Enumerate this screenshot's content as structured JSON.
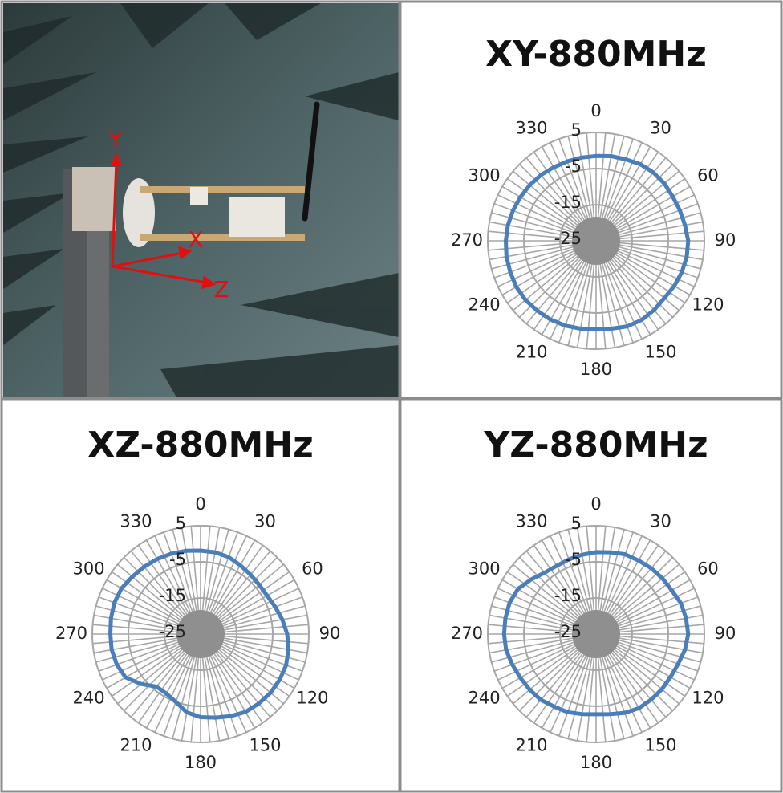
{
  "photo": {
    "axis_labels": [
      "Y",
      "X",
      "Z"
    ]
  },
  "chart_data": [
    {
      "type": "radar",
      "title": "XY-880MHz",
      "categories": [
        0,
        null,
        null,
        30,
        null,
        null,
        60,
        null,
        null,
        90,
        null,
        null,
        120,
        null,
        null,
        150,
        null,
        null,
        180,
        null,
        null,
        210,
        null,
        null,
        240,
        null,
        null,
        270,
        null,
        null,
        300,
        null,
        null,
        330,
        null,
        null
      ],
      "series": [
        {
          "color": "#4a7ebb",
          "values": [
            -1.5,
            -1.2,
            -1,
            -0.5,
            -0.3,
            -0.3,
            -0.5,
            -0.3,
            0,
            0.5,
            0.5,
            0.3,
            0,
            -0.3,
            0,
            0.3,
            0.2,
            -0.3,
            -0.5,
            -0.3,
            0,
            0.2,
            0.3,
            0.5,
            0.5,
            0.3,
            0.2,
            0,
            -0.2,
            -0.5,
            -0.8,
            -1,
            -1.2,
            -1.5,
            -1.6,
            -1.6
          ]
        }
      ],
      "ylim": [
        -25,
        5
      ],
      "yticks": [
        -25,
        -15,
        -5,
        5
      ],
      "grid": true
    },
    {
      "type": "radar",
      "title": "XZ-880MHz",
      "categories": [
        0,
        null,
        null,
        30,
        null,
        null,
        60,
        null,
        null,
        90,
        null,
        null,
        120,
        null,
        null,
        150,
        null,
        null,
        180,
        null,
        null,
        210,
        null,
        null,
        240,
        null,
        null,
        270,
        null,
        null,
        300,
        null,
        null,
        330,
        null,
        null
      ],
      "series": [
        {
          "color": "#4a7ebb",
          "values": [
            -1.9,
            -2,
            -2.3,
            -3,
            -3.5,
            -3.8,
            -3.7,
            -3,
            -2,
            -1,
            -0.3,
            0.2,
            0.3,
            0.3,
            0.1,
            -0.1,
            -0.8,
            -1.5,
            -2,
            -3,
            -5,
            -6,
            -6,
            -3.5,
            -1,
            -0.3,
            0,
            0,
            0.2,
            0.4,
            0.3,
            -0.3,
            -0.7,
            -1,
            -1.3,
            -1.6
          ]
        }
      ],
      "ylim": [
        -25,
        5
      ],
      "yticks": [
        -25,
        -15,
        -5,
        5
      ],
      "grid": true
    },
    {
      "type": "radar",
      "title": "YZ-880MHz",
      "categories": [
        0,
        null,
        null,
        30,
        null,
        null,
        60,
        null,
        null,
        90,
        null,
        null,
        120,
        null,
        null,
        150,
        null,
        null,
        180,
        null,
        null,
        210,
        null,
        null,
        240,
        null,
        null,
        270,
        null,
        null,
        300,
        null,
        null,
        330,
        null,
        null
      ],
      "series": [
        {
          "color": "#4a7ebb",
          "values": [
            -2.3,
            -2,
            -1.5,
            -1.5,
            -1.2,
            -1,
            -0.8,
            0,
            0.3,
            0.5,
            0,
            -0.8,
            -1.2,
            -1.2,
            -1.3,
            -1.3,
            -1.8,
            -2.5,
            -2.8,
            -2.5,
            -2,
            -1.8,
            -1.2,
            -1,
            -0.8,
            -0.3,
            0.3,
            0.5,
            0.5,
            0.5,
            0,
            -1.5,
            -2.8,
            -3.2,
            -3,
            -2.7
          ]
        }
      ],
      "ylim": [
        -25,
        5
      ],
      "yticks": [
        -25,
        -15,
        -5,
        5
      ],
      "grid": true
    }
  ]
}
